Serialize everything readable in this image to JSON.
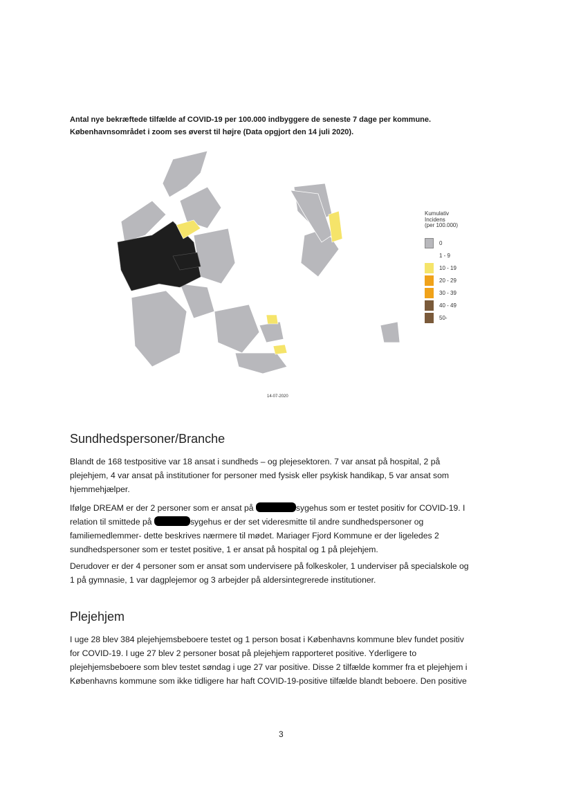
{
  "caption": {
    "line1": "Antal nye bekræftede tilfælde af COVID-19 per 100.000 indbyggere de seneste 7 dage per kommune.",
    "line2": "Københavnsområdet i zoom ses øverst til højre (Data opgjort den 14 juli 2020)."
  },
  "map": {
    "legend_title": [
      "Kumulativ",
      "Incidens",
      "(per 100.000)"
    ],
    "legend": [
      {
        "label": "0",
        "color": "#b8b8bc"
      },
      {
        "label": "1 - 9",
        "color": "#ffffff"
      },
      {
        "label": "10 - 19",
        "color": "#f5e46a"
      },
      {
        "label": "20 - 29",
        "color": "#f0a21a"
      },
      {
        "label": "30 - 39",
        "color": "#f0a21a"
      },
      {
        "label": "40 - 49",
        "color": "#7a5a3a"
      },
      {
        "label": "50-",
        "color": "#7a5a3a"
      }
    ],
    "date": "14-07-2020"
  },
  "section1": {
    "heading": "Sundhedspersoner/Branche",
    "p1": [
      "Blandt de 168 testpositive var 18 ansat i sundheds – og plejesektoren. 7 var ansat på hospital, 2 på",
      "plejehjem, 4 var ansat på institutioner for personer med fysisk eller psykisk handikap, 5 var ansat som",
      "hjemmehjælper."
    ],
    "p2": {
      "l1a": "Ifølge DREAM er der 2 personer som er ansat på ",
      "l1b": "sygehus som er testet positiv for COVID-19. I",
      "l2a": "relation til smittede på ",
      "l2b": "sygehus er der set videresmitte til andre sundhedspersoner og",
      "l3": "familiemedlemmer- dette beskrives nærmere til mødet. Mariager Fjord Kommune er der ligeledes 2",
      "l4": "sundhedspersoner som er testet positive, 1 er ansat på hospital og 1 på plejehjem."
    },
    "p3": [
      "Derudover er der 4 personer som er ansat som undervisere på folkeskoler, 1 underviser på specialskole og",
      "1 på gymnasie, 1 var dagplejemor og 3 arbejder på aldersintegrerede institutioner."
    ]
  },
  "section2": {
    "heading": "Plejehjem",
    "p1": [
      "I uge 28 blev 384 plejehjemsbeboere testet og 1 person bosat i Københavns kommune blev fundet positiv",
      "for COVID-19. I uge 27 blev 2 personer bosat på plejehjem rapporteret positive. Yderligere to",
      "plejehjemsbeboere som blev testet søndag i uge 27 var positive. Disse 2 tilfælde kommer fra et plejehjem i",
      "Københavns kommune som ikke tidligere har haft COVID-19-positive tilfælde blandt beboere.  Den positive"
    ]
  },
  "page_number": "3"
}
